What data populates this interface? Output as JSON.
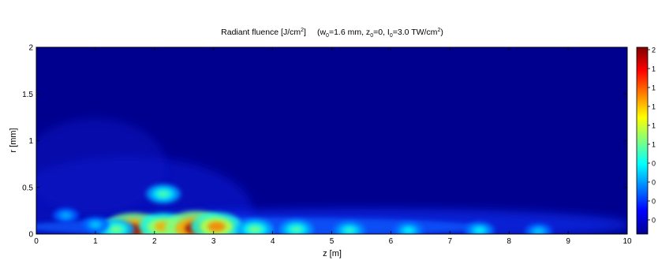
{
  "chart_data": {
    "type": "heatmap",
    "title": {
      "prefix": "Radiant fluence [J/cm",
      "prefix_sup": "2",
      "prefix_close": "]",
      "params_open": "(w",
      "w_sub": "0",
      "w_val": "=1.6 mm, z",
      "z_sub": "0",
      "z_val": "=0, I",
      "i_sub": "0",
      "i_val": "=3.0 TW/cm",
      "i_sup": "2",
      "params_close": ")"
    },
    "xlabel": "z [m]",
    "ylabel": "r [mm]",
    "xlim": [
      0,
      10
    ],
    "ylim": [
      0,
      2
    ],
    "x_ticks": [
      "0",
      "1",
      "2",
      "3",
      "4",
      "5",
      "6",
      "7",
      "8",
      "9",
      "10"
    ],
    "y_ticks": [
      "0",
      "0.5",
      "1",
      "1.5",
      "2"
    ],
    "colorbar_ticks": [
      "2",
      "1",
      "1",
      "1",
      "1",
      "1",
      "0",
      "0",
      "0",
      "0"
    ],
    "colormap": "jet",
    "features": [
      {
        "z": 1.65,
        "r": 0.04,
        "value": 1.0
      },
      {
        "z": 2.15,
        "r": 0.08,
        "value": 0.7
      },
      {
        "z": 2.7,
        "r": 0.06,
        "value": 1.0
      },
      {
        "z": 3.05,
        "r": 0.08,
        "value": 0.75
      },
      {
        "z": 2.15,
        "r": 0.43,
        "value": 0.4
      },
      {
        "z": 1.35,
        "r": 0.05,
        "value": 0.45
      },
      {
        "z": 3.7,
        "r": 0.05,
        "value": 0.45
      },
      {
        "z": 4.4,
        "r": 0.05,
        "value": 0.4
      },
      {
        "z": 5.3,
        "r": 0.04,
        "value": 0.35
      },
      {
        "z": 6.3,
        "r": 0.04,
        "value": 0.3
      },
      {
        "z": 7.5,
        "r": 0.04,
        "value": 0.3
      },
      {
        "z": 8.5,
        "r": 0.03,
        "value": 0.25
      },
      {
        "z": 1.0,
        "r": 0.1,
        "value": 0.25
      },
      {
        "z": 0.5,
        "r": 0.2,
        "value": 0.22
      }
    ]
  }
}
